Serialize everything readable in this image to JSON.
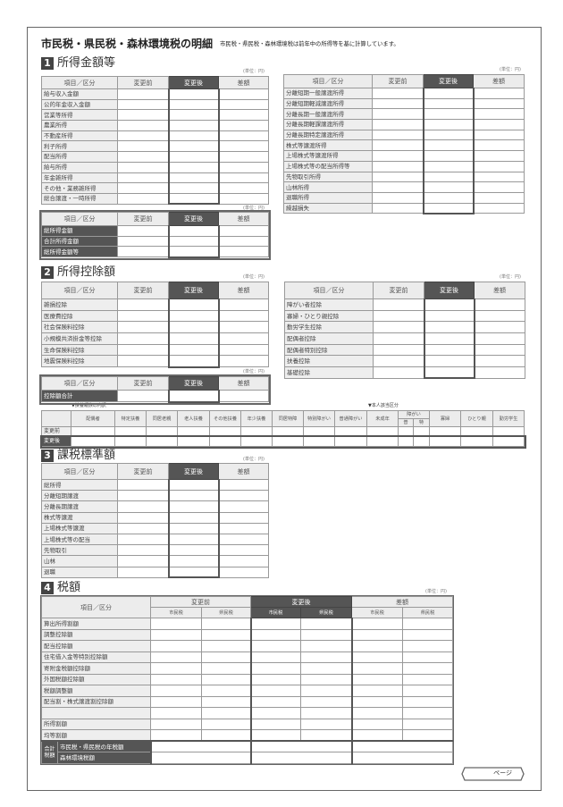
{
  "title": "市民税・県民税・森林環境税の明細",
  "note": "市民税・県民税・森林環境税は前年中の所得等を基に計算しています。",
  "unit": "(単位：円)",
  "columns": {
    "item": "項目／区分",
    "before": "変更前",
    "after": "変更後",
    "diff": "差額"
  },
  "sections": [
    {
      "num": "1",
      "title": "所得金額等"
    },
    {
      "num": "2",
      "title": "所得控除額"
    },
    {
      "num": "3",
      "title": "課税標準額"
    },
    {
      "num": "4",
      "title": "税額"
    }
  ],
  "income_left": [
    "給与収入金額",
    "公的年金収入金額",
    "営業等所得",
    "農業所得",
    "不動産所得",
    "利子所得",
    "配当所得",
    "給与所得",
    "年金雑所得",
    "その他・業務雑所得",
    "総合譲渡・一時所得"
  ],
  "income_right": [
    "分離短期一般譲渡所得",
    "分離短期軽減譲渡所得",
    "分離長期一般譲渡所得",
    "分離長期軽課譲渡所得",
    "分離長期特定譲渡所得",
    "株式等譲渡所得",
    "上場株式等譲渡所得",
    "上場株式等の配当所得等",
    "先物取引所得",
    "山林所得",
    "退職所得",
    "繰越損失"
  ],
  "income_totals": [
    "総所得金額",
    "合計所得金額",
    "総所得金額等"
  ],
  "deduction_left": [
    "雑損控除",
    "医療費控除",
    "社会保険料控除",
    "小規模共済掛金等控除",
    "生命保険料控除",
    "地震保険料控除"
  ],
  "deduction_right": [
    "障がい者控除",
    "寡婦・ひとり親控除",
    "勤労学生控除",
    "配偶者控除",
    "配偶者特別控除",
    "扶養控除",
    "基礎控除"
  ],
  "deduction_total": [
    "控除額合計"
  ],
  "dependents": {
    "label_left": "▼扶養親族の内訳",
    "label_right": "▼本人該当区分",
    "headers_a": [
      "配偶者",
      "特定扶養",
      "同居老親",
      "老人扶養",
      "その他扶養",
      "年少扶養",
      "同居特障",
      "特別障がい",
      "普通障がい",
      "未成年"
    ],
    "disability": "障がい",
    "disability_sub": [
      "普",
      "特"
    ],
    "headers_b": [
      "寡婦",
      "ひとり親",
      "勤労学生"
    ],
    "rows": [
      "変更前",
      "変更後"
    ]
  },
  "taxable": [
    "総所得",
    "分離短期譲渡",
    "分離長期譲渡",
    "株式等譲渡",
    "上場株式等譲渡",
    "上場株式等の配当",
    "先物取引",
    "山林",
    "退職"
  ],
  "tax": {
    "sub": [
      "市民税",
      "県民税"
    ],
    "rows": [
      "算出所得割額",
      "調整控除額",
      "配当控除額",
      "住宅借入金等特別控除額",
      "寄附金税額控除額",
      "外国税額控除額",
      "税額調整額",
      "配当割・株式譲渡割控除額",
      "",
      "所得割額",
      "均等割額"
    ],
    "total_group": "合計税額",
    "totals": [
      "市民税・県民税の年税額",
      "森林環境税額"
    ]
  },
  "page_label": "ページ"
}
